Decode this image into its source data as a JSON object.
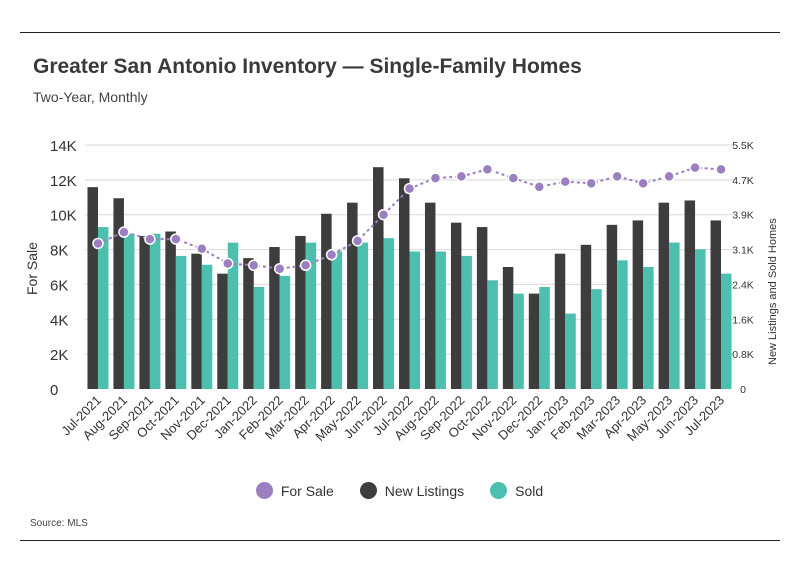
{
  "title": "Greater San Antonio Inventory — Single-Family Homes",
  "subtitle": "Two-Year, Monthly",
  "source": "Source: MLS",
  "colors": {
    "for_sale": "#9b7fc0",
    "new_listings": "#3d3d3d",
    "sold": "#4dbfae"
  },
  "legend": [
    {
      "label": "For Sale",
      "color_key": "for_sale"
    },
    {
      "label": "New Listings",
      "color_key": "new_listings"
    },
    {
      "label": "Sold",
      "color_key": "sold"
    }
  ],
  "chart_data": {
    "type": "bar",
    "categories": [
      "Jul-2021",
      "Aug-2021",
      "Sep-2021",
      "Oct-2021",
      "Nov-2021",
      "Dec-2021",
      "Jan-2022",
      "Feb-2022",
      "Mar-2022",
      "Apr-2022",
      "May-2022",
      "Jun-2022",
      "Jul-2022",
      "Aug-2022",
      "Sep-2022",
      "Oct-2022",
      "Nov-2022",
      "Dec-2022",
      "Jan-2023",
      "Feb-2023",
      "Mar-2023",
      "Apr-2023",
      "May-2023",
      "Jun-2023",
      "Jul-2023"
    ],
    "ylabel_left": "For Sale",
    "ylabel_right": "New Listings and Sold Homes",
    "left_axis": {
      "min": 0,
      "max": 14000,
      "ticks": [
        "0",
        "2K",
        "4K",
        "6K",
        "8K",
        "10K",
        "12K",
        "14K"
      ]
    },
    "right_axis": {
      "min": 0,
      "max": 5500,
      "ticks": [
        "0",
        "0.8K",
        "1.6K",
        "2.4K",
        "3.1K",
        "3.9K",
        "4.7K",
        "5.5K"
      ]
    },
    "series": [
      {
        "name": "New Listings",
        "type": "bar",
        "axis": "right",
        "values": [
          4550,
          4300,
          3450,
          3550,
          3050,
          2600,
          2950,
          3200,
          3450,
          3950,
          4200,
          5000,
          4750,
          4200,
          3750,
          3650,
          2750,
          2150,
          3050,
          3250,
          3700,
          3800,
          4200,
          4250,
          3800
        ]
      },
      {
        "name": "Sold",
        "type": "bar",
        "axis": "right",
        "values": [
          3650,
          3500,
          3500,
          3000,
          2800,
          3300,
          2300,
          2550,
          3300,
          3100,
          3300,
          3400,
          3100,
          3100,
          3000,
          2450,
          2150,
          2300,
          1700,
          2250,
          2900,
          2750,
          3300,
          3150,
          2600
        ]
      },
      {
        "name": "For Sale",
        "type": "line",
        "axis": "left",
        "values": [
          8350,
          9000,
          8600,
          8600,
          8050,
          7200,
          7100,
          6900,
          7100,
          7700,
          8500,
          10000,
          11500,
          12100,
          12200,
          12600,
          12100,
          11600,
          11900,
          11800,
          12200,
          11800,
          12200,
          12700,
          12600
        ]
      }
    ]
  }
}
